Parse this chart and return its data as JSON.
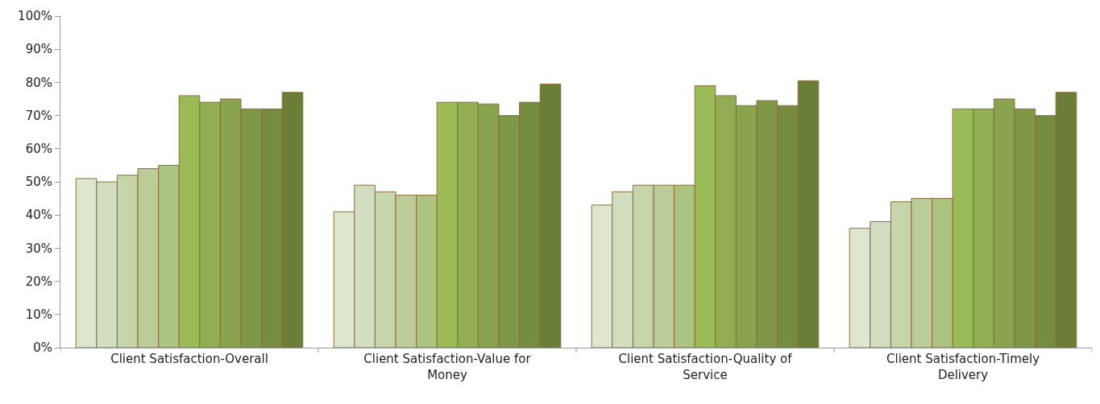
{
  "chart_data": {
    "type": "bar",
    "categories": [
      "Client Satisfaction-Overall",
      "Client Satisfaction-Value for Money",
      "Client Satisfaction-Quality of Service",
      "Client Satisfaction-Timely Delivery"
    ],
    "series": [
      {
        "color": "#dfe6cf",
        "values": [
          51,
          41,
          43,
          36
        ]
      },
      {
        "color": "#d3dec0",
        "values": [
          50,
          49,
          47,
          38
        ]
      },
      {
        "color": "#c7d5ab",
        "values": [
          52,
          47,
          49,
          44
        ]
      },
      {
        "color": "#bccc98",
        "values": [
          54,
          46,
          49,
          45
        ]
      },
      {
        "color": "#abc47f",
        "values": [
          55,
          46,
          49,
          45
        ]
      },
      {
        "color": "#9bbb59",
        "values": [
          76,
          74,
          79,
          72
        ]
      },
      {
        "color": "#93ad55",
        "values": [
          74,
          74,
          76,
          72
        ]
      },
      {
        "color": "#89a34e",
        "values": [
          75,
          73.5,
          73,
          75
        ]
      },
      {
        "color": "#7e9847",
        "values": [
          72,
          70,
          74.5,
          72
        ]
      },
      {
        "color": "#748b40",
        "values": [
          72,
          74,
          73,
          70
        ]
      },
      {
        "color": "#6a7e38",
        "values": [
          77,
          79.5,
          80.5,
          77
        ]
      }
    ],
    "ylim": [
      0,
      100
    ],
    "yticks": [
      {
        "value": 0,
        "label": "0%"
      },
      {
        "value": 10,
        "label": "10%"
      },
      {
        "value": 20,
        "label": "20%"
      },
      {
        "value": 30,
        "label": "30%"
      },
      {
        "value": 40,
        "label": "40%"
      },
      {
        "value": 50,
        "label": "50%"
      },
      {
        "value": 60,
        "label": "60%"
      },
      {
        "value": 70,
        "label": "70%"
      },
      {
        "value": 80,
        "label": "80%"
      },
      {
        "value": 90,
        "label": "90%"
      },
      {
        "value": 100,
        "label": "100%"
      }
    ],
    "grid": false
  }
}
